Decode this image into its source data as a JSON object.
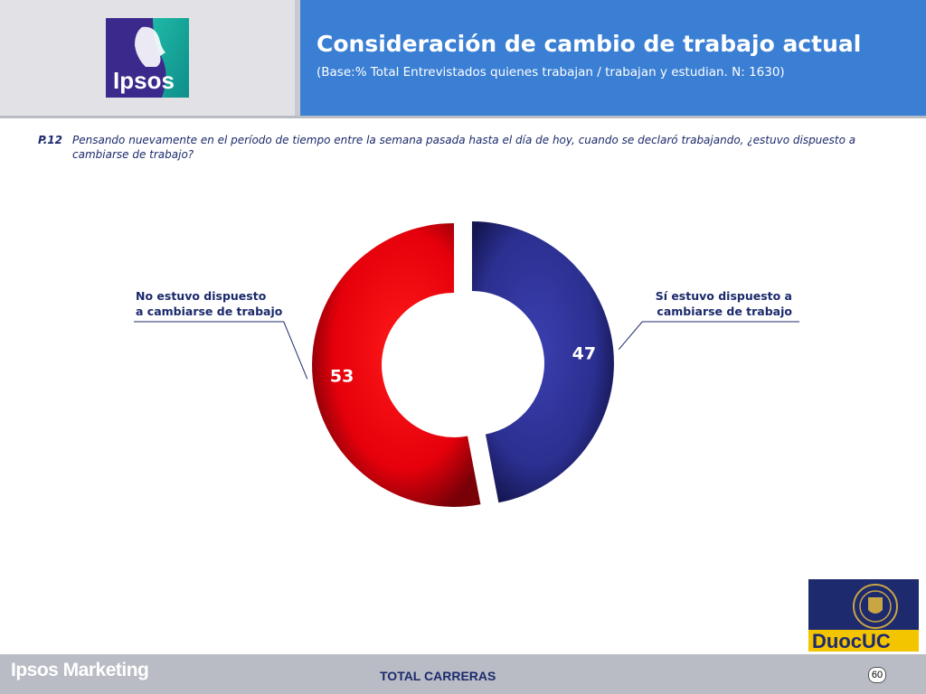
{
  "header": {
    "logo_text": "Ipsos",
    "title": "Consideración de cambio de trabajo actual",
    "subtitle": "(Base:% Total Entrevistados quienes trabajan / trabajan y estudian. N: 1630)"
  },
  "question": {
    "number": "P.12",
    "text": "Pensando nuevamente en el período de tiempo entre la semana pasada hasta el día de hoy, cuando se declaró trabajando, ¿estuvo dispuesto a cambiarse de trabajo?"
  },
  "chart_data": {
    "type": "pie",
    "subtype": "donut",
    "series": [
      {
        "name": "Sí estuvo dispuesto a cambiarse de trabajo",
        "label_lines": [
          "Sí estuvo dispuesto a",
          "cambiarse de trabajo"
        ],
        "value": 47,
        "color": "#2b2f8f"
      },
      {
        "name": "No estuvo dispuesto a cambiarse de trabajo",
        "label_lines": [
          "No estuvo dispuesto",
          "a cambiarse de trabajo"
        ],
        "value": 53,
        "color": "#e5000b"
      }
    ]
  },
  "footer": {
    "brand": "Ipsos Marketing",
    "label": "TOTAL CARRERAS",
    "page_number": "60",
    "partner_logo_text": "DuocUC"
  },
  "colors": {
    "header_blue": "#3a7fd4",
    "navy_text": "#1b2a6b",
    "footer_gray": "#b9bcc5"
  }
}
